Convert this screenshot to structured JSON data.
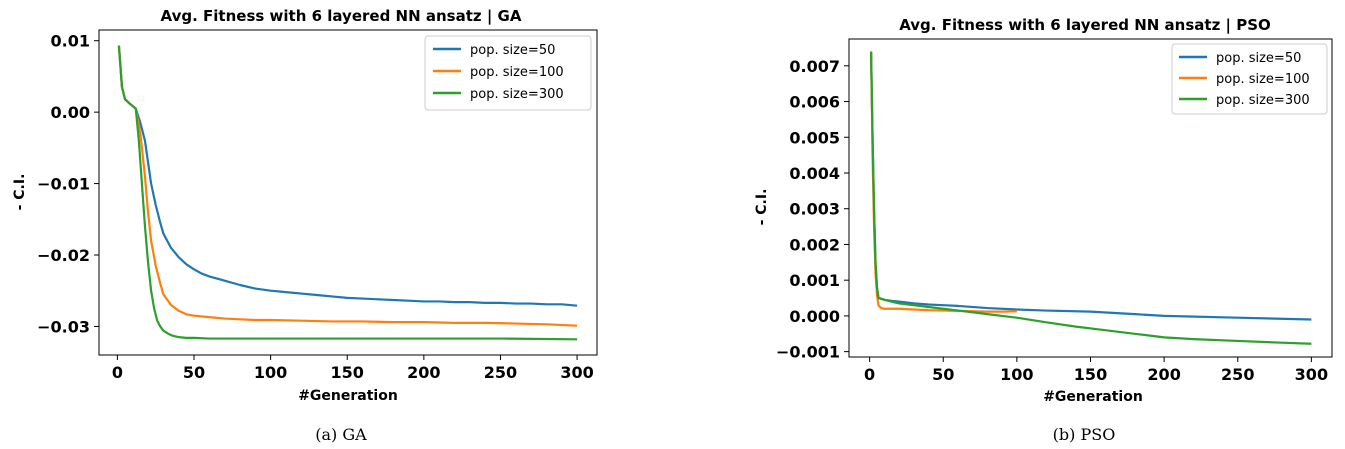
{
  "figure": {
    "captions": [
      "(a) GA",
      "(b) PSO"
    ],
    "colors": {
      "series0": "#1f77b4",
      "series1": "#ff7f0e",
      "series2": "#2ca02c"
    }
  },
  "chart_data": [
    {
      "type": "line",
      "title": "Avg. Fitness with 6 layered NN ansatz | GA",
      "xlabel": "#Generation",
      "ylabel": "- C.I.",
      "xlim": [
        -12,
        313
      ],
      "ylim": [
        -0.034,
        0.0115
      ],
      "xticks": [
        0,
        50,
        100,
        150,
        200,
        250,
        300
      ],
      "xtick_labels": [
        "0",
        "50",
        "100",
        "150",
        "200",
        "250",
        "300"
      ],
      "yticks": [
        0.01,
        0.0,
        -0.01,
        -0.02,
        -0.03
      ],
      "ytick_labels": [
        "0.01",
        "0.00",
        "−0.01",
        "−0.02",
        "−0.03"
      ],
      "legend_position": "top-right",
      "series": [
        {
          "name": "pop. size=50",
          "color": "#1f77b4",
          "x": [
            1,
            3,
            5,
            8,
            12,
            15,
            18,
            20,
            22,
            25,
            28,
            30,
            35,
            40,
            45,
            50,
            55,
            60,
            70,
            80,
            90,
            100,
            110,
            120,
            130,
            140,
            150,
            160,
            170,
            180,
            190,
            200,
            210,
            220,
            230,
            240,
            250,
            260,
            270,
            280,
            290,
            300
          ],
          "y": [
            0.0093,
            0.0035,
            0.0018,
            0.0012,
            0.0005,
            -0.0015,
            -0.004,
            -0.007,
            -0.01,
            -0.013,
            -0.0155,
            -0.017,
            -0.019,
            -0.0203,
            -0.0213,
            -0.022,
            -0.0226,
            -0.023,
            -0.0236,
            -0.0242,
            -0.0247,
            -0.025,
            -0.0252,
            -0.0254,
            -0.0256,
            -0.0258,
            -0.026,
            -0.0261,
            -0.0262,
            -0.0263,
            -0.0264,
            -0.0265,
            -0.0265,
            -0.0266,
            -0.0266,
            -0.0267,
            -0.0267,
            -0.0268,
            -0.0268,
            -0.0269,
            -0.0269,
            -0.0271
          ]
        },
        {
          "name": "pop. size=100",
          "color": "#ff7f0e",
          "x": [
            1,
            3,
            5,
            8,
            12,
            15,
            18,
            20,
            22,
            25,
            28,
            30,
            35,
            40,
            45,
            50,
            60,
            70,
            80,
            90,
            100,
            120,
            140,
            160,
            180,
            200,
            220,
            240,
            260,
            280,
            300
          ],
          "y": [
            0.0093,
            0.0035,
            0.0018,
            0.0012,
            0.0005,
            -0.003,
            -0.009,
            -0.014,
            -0.018,
            -0.0215,
            -0.024,
            -0.0255,
            -0.027,
            -0.0278,
            -0.0283,
            -0.0285,
            -0.0287,
            -0.0289,
            -0.029,
            -0.0291,
            -0.0291,
            -0.0292,
            -0.0293,
            -0.0293,
            -0.0294,
            -0.0294,
            -0.0295,
            -0.0295,
            -0.0296,
            -0.0297,
            -0.0299
          ]
        },
        {
          "name": "pop. size=300",
          "color": "#2ca02c",
          "x": [
            1,
            3,
            5,
            8,
            12,
            14,
            16,
            18,
            20,
            22,
            24,
            26,
            28,
            30,
            33,
            36,
            40,
            45,
            50,
            60,
            80,
            100,
            150,
            200,
            250,
            300
          ],
          "y": [
            0.0093,
            0.0035,
            0.0018,
            0.0012,
            0.0005,
            -0.004,
            -0.01,
            -0.016,
            -0.021,
            -0.025,
            -0.0275,
            -0.0292,
            -0.03,
            -0.0306,
            -0.031,
            -0.0313,
            -0.0315,
            -0.0316,
            -0.0316,
            -0.0317,
            -0.0317,
            -0.0317,
            -0.0317,
            -0.0317,
            -0.0317,
            -0.0318
          ]
        }
      ]
    },
    {
      "type": "line",
      "title": "Avg. Fitness with 6 layered NN ansatz | PSO",
      "xlabel": "#Generation",
      "ylabel": "- C.I.",
      "xlim": [
        -14,
        314
      ],
      "ylim": [
        -0.00115,
        0.00775
      ],
      "xticks": [
        0,
        50,
        100,
        150,
        200,
        250,
        300
      ],
      "xtick_labels": [
        "0",
        "50",
        "100",
        "150",
        "200",
        "250",
        "300"
      ],
      "yticks": [
        0.007,
        0.006,
        0.005,
        0.004,
        0.003,
        0.002,
        0.001,
        0.0,
        -0.001
      ],
      "ytick_labels": [
        "0.007",
        "0.006",
        "0.005",
        "0.004",
        "0.003",
        "0.002",
        "0.001",
        "0.000",
        "−0.001"
      ],
      "legend_position": "top-right",
      "series": [
        {
          "name": "pop. size=50",
          "color": "#1f77b4",
          "x": [
            1,
            2,
            3,
            4,
            5,
            6,
            8,
            10,
            15,
            20,
            30,
            40,
            50,
            60,
            80,
            100,
            120,
            150,
            180,
            200,
            250,
            300
          ],
          "y": [
            0.0074,
            0.005,
            0.003,
            0.0015,
            0.0008,
            0.0005,
            0.00048,
            0.00045,
            0.00042,
            0.0004,
            0.00035,
            0.00032,
            0.0003,
            0.00028,
            0.00022,
            0.00018,
            0.00015,
            0.00012,
            5e-05,
            0.0,
            -5e-05,
            -0.0001
          ]
        },
        {
          "name": "pop. size=100",
          "color": "#ff7f0e",
          "x": [
            1,
            2,
            3,
            4,
            5,
            6,
            7,
            8,
            10,
            15,
            20,
            30,
            40,
            50,
            60,
            70,
            80,
            90,
            100
          ],
          "y": [
            0.0074,
            0.0045,
            0.0025,
            0.0012,
            0.0006,
            0.0003,
            0.00025,
            0.00022,
            0.0002,
            0.0002,
            0.0002,
            0.00018,
            0.00016,
            0.00015,
            0.00014,
            0.00013,
            0.00012,
            0.00012,
            0.00013
          ]
        },
        {
          "name": "pop. size=300",
          "color": "#2ca02c",
          "x": [
            1,
            2,
            3,
            4,
            5,
            6,
            8,
            10,
            15,
            20,
            30,
            40,
            50,
            60,
            70,
            80,
            90,
            100,
            120,
            140,
            160,
            180,
            200,
            220,
            250,
            280,
            300
          ],
          "y": [
            0.0074,
            0.005,
            0.003,
            0.0015,
            0.0008,
            0.0005,
            0.00048,
            0.00045,
            0.0004,
            0.00035,
            0.0003,
            0.00025,
            0.0002,
            0.00015,
            0.0001,
            5e-05,
            0.0,
            -5e-05,
            -0.00018,
            -0.0003,
            -0.0004,
            -0.0005,
            -0.0006,
            -0.00065,
            -0.0007,
            -0.00075,
            -0.00078
          ]
        }
      ]
    }
  ]
}
